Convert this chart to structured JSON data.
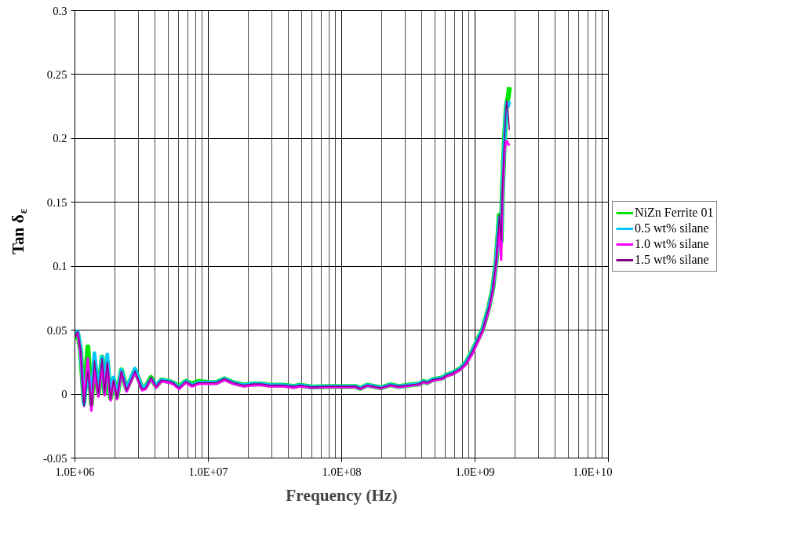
{
  "chart_data": {
    "type": "line",
    "xlabel": "Frequency (Hz)",
    "ylabel": "Tan δ$_{ε}$",
    "log": "x",
    "grid": true,
    "legend": "right",
    "marker": "none",
    "line_style": "solid",
    "xlim": [
      1000000,
      10000000000
    ],
    "ylim": [
      -0.05,
      0.3
    ],
    "xticks": [
      {
        "value": 1000000,
        "label": "1.0E+06"
      },
      {
        "value": 10000000,
        "label": "1.0E+07"
      },
      {
        "value": 100000000,
        "label": "1.0E+08"
      },
      {
        "value": 1000000000,
        "label": "1.0E+09"
      },
      {
        "value": 10000000000,
        "label": "1.0E+10"
      }
    ],
    "yticks": [
      -0.05,
      0,
      0.05,
      0.1,
      0.15,
      0.2,
      0.25,
      0.3
    ],
    "x": [
      1010000.0,
      1050000.0,
      1100000.0,
      1170000.0,
      1250000.0,
      1330000.0,
      1400000.0,
      1500000.0,
      1600000.0,
      1670000.0,
      1750000.0,
      1850000.0,
      1950000.0,
      2070000.0,
      2230000.0,
      2440000.0,
      2820000.0,
      3180000.0,
      3400000.0,
      3720000.0,
      4060000.0,
      4440000.0,
      5070000.0,
      5420000.0,
      6050000.0,
      6780000.0,
      7570000.0,
      8450000.0,
      10100000.0,
      11500000.0,
      13200000.0,
      15400000.0,
      18400000.0,
      21900000.0,
      25100000.0,
      28600000.0,
      36400000.0,
      43800000.0,
      48800000.0,
      59600000.0,
      77700000.0,
      101000000.0,
      127000000.0,
      138000000.0,
      155000000.0,
      197000000.0,
      231000000.0,
      268000000.0,
      336000000.0,
      384000000.0,
      410000000.0,
      438000000.0,
      481000000.0,
      571000000.0,
      611000000.0,
      680000000.0,
      776000000.0,
      853000000.0,
      948000000.0,
      1020000000.0,
      1140000000.0,
      1270000000.0,
      1360000000.0,
      1440000000.0,
      1490000000.0,
      1520000000.0,
      1570000000.0,
      1600000000.0,
      1660000000.0,
      1710000000.0,
      1730000000.0,
      1770000000.0,
      1810000000.0
    ],
    "series": [
      {
        "name": "NiZn Ferrite 01",
        "color": "#00e600",
        "values": [
          0.043,
          0.047,
          0.035,
          -0.006,
          0.037,
          -0.008,
          0.026,
          0.0,
          0.029,
          0.001,
          0.025,
          -0.003,
          0.012,
          -0.002,
          0.019,
          0.004,
          0.019,
          0.005,
          0.006,
          0.013,
          0.006,
          0.011,
          0.01,
          0.009,
          0.006,
          0.01,
          0.008,
          0.01,
          0.009,
          0.009,
          0.012,
          0.009,
          0.007,
          0.008,
          0.008,
          0.007,
          0.007,
          0.006,
          0.007,
          0.0055,
          0.006,
          0.006,
          0.006,
          0.0045,
          0.007,
          0.005,
          0.0073,
          0.006,
          0.0073,
          0.008,
          0.01,
          0.009,
          0.0113,
          0.0127,
          0.0148,
          0.0165,
          0.02,
          0.0245,
          0.033,
          0.04,
          0.0506,
          0.068,
          0.083,
          0.1045,
          0.126,
          0.14,
          0.12,
          0.156,
          0.199,
          0.222,
          0.228,
          0.232,
          0.24
        ]
      },
      {
        "name": "0.5 wt% silane",
        "color": "#00c8ff",
        "values": [
          0.047,
          0.049,
          0.036,
          -0.008,
          0.02,
          -0.003,
          0.032,
          0.001,
          0.029,
          0.002,
          0.031,
          -0.002,
          0.013,
          -0.002,
          0.019,
          0.004,
          0.02,
          0.005,
          0.006,
          0.012,
          0.007,
          0.011,
          0.01,
          0.009,
          0.005,
          0.01,
          0.007,
          0.009,
          0.009,
          0.009,
          0.012,
          0.009,
          0.007,
          0.008,
          0.008,
          0.007,
          0.007,
          0.006,
          0.007,
          0.0055,
          0.006,
          0.006,
          0.006,
          0.0045,
          0.007,
          0.005,
          0.0073,
          0.006,
          0.0073,
          0.008,
          0.01,
          0.009,
          0.0113,
          0.0127,
          0.0148,
          0.0165,
          0.02,
          0.0245,
          0.033,
          0.04,
          0.0506,
          0.068,
          0.083,
          0.1045,
          0.126,
          0.138,
          0.118,
          0.155,
          0.198,
          0.222,
          0.228,
          0.225,
          0.229
        ]
      },
      {
        "name": "1.0 wt% silane",
        "color": "#ff00ff",
        "values": [
          0.045,
          0.048,
          0.033,
          -0.006,
          0.028,
          -0.013,
          0.019,
          -0.002,
          0.024,
          -0.001,
          0.023,
          -0.005,
          0.01,
          -0.004,
          0.017,
          0.002,
          0.017,
          0.003,
          0.004,
          0.012,
          0.005,
          0.01,
          0.009,
          0.008,
          0.004,
          0.009,
          0.006,
          0.008,
          0.008,
          0.008,
          0.011,
          0.008,
          0.006,
          0.007,
          0.007,
          0.006,
          0.006,
          0.005,
          0.006,
          0.005,
          0.0055,
          0.0055,
          0.0055,
          0.004,
          0.0065,
          0.0045,
          0.0068,
          0.0055,
          0.0068,
          0.0075,
          0.0095,
          0.0085,
          0.0105,
          0.012,
          0.014,
          0.0155,
          0.019,
          0.023,
          0.031,
          0.038,
          0.049,
          0.066,
          0.081,
          0.102,
          0.122,
          0.13,
          0.105,
          0.15,
          0.19,
          0.197,
          0.198,
          0.196,
          0.1945
        ]
      },
      {
        "name": "1.5 wt% silane",
        "color": "#800080",
        "values": [
          0.045,
          0.049,
          0.035,
          -0.01,
          0.018,
          -0.009,
          0.026,
          0.0,
          0.028,
          0.001,
          0.025,
          -0.004,
          0.011,
          -0.003,
          0.018,
          0.003,
          0.018,
          0.004,
          0.005,
          0.013,
          0.006,
          0.011,
          0.01,
          0.009,
          0.005,
          0.01,
          0.007,
          0.009,
          0.009,
          0.009,
          0.012,
          0.009,
          0.007,
          0.008,
          0.008,
          0.007,
          0.007,
          0.006,
          0.007,
          0.0055,
          0.006,
          0.006,
          0.006,
          0.0045,
          0.007,
          0.005,
          0.0073,
          0.006,
          0.0073,
          0.008,
          0.01,
          0.009,
          0.0113,
          0.0127,
          0.0148,
          0.0165,
          0.02,
          0.0245,
          0.033,
          0.04,
          0.0506,
          0.068,
          0.083,
          0.1045,
          0.126,
          0.14,
          0.12,
          0.156,
          0.199,
          0.224,
          0.2295,
          0.22,
          0.2066
        ]
      }
    ]
  }
}
